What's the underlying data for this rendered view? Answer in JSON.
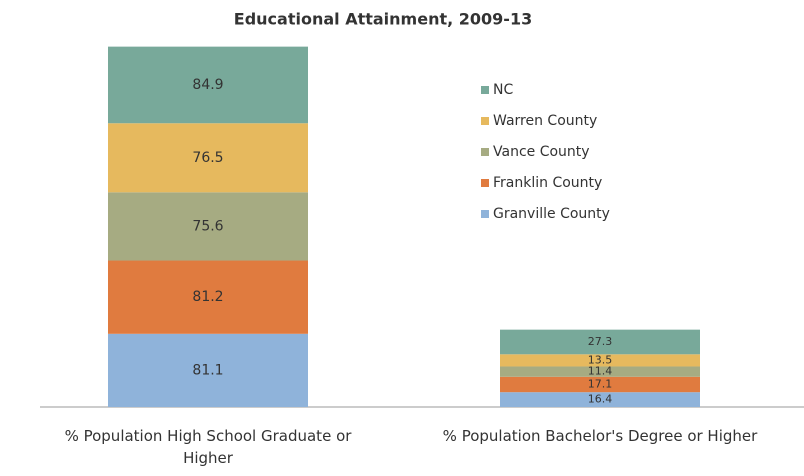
{
  "chart_data": {
    "type": "stacked_bar",
    "title": "Educational Attainment, 2009-13",
    "categories": [
      "% Population  High School Graduate or Higher",
      "% Population Bachelor's Degree or Higher"
    ],
    "series": [
      {
        "name": "Granville County",
        "color": "#8fb3da",
        "values": [
          81.1,
          16.4
        ]
      },
      {
        "name": "Franklin County",
        "color": "#e07b3f",
        "values": [
          81.2,
          17.1
        ]
      },
      {
        "name": "Vance County",
        "color": "#a6ab82",
        "values": [
          75.6,
          11.4
        ]
      },
      {
        "name": "Warren County",
        "color": "#e6b95e",
        "values": [
          76.5,
          13.5
        ]
      },
      {
        "name": "NC",
        "color": "#78a99a",
        "values": [
          84.9,
          27.3
        ]
      }
    ],
    "ylim": [
      0,
      400
    ],
    "legend": "right"
  }
}
